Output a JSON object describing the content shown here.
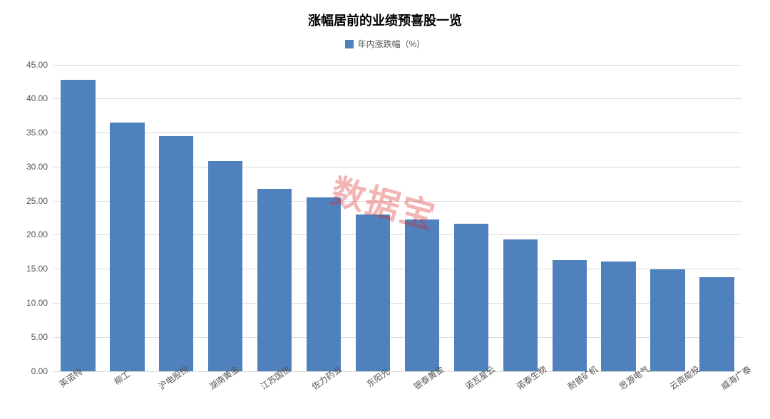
{
  "chart": {
    "type": "bar",
    "title": "涨幅居前的业绩预喜股一览",
    "title_fontsize": 18,
    "title_fontweight": "bold",
    "title_color": "#000000",
    "legend": {
      "label": "年内涨跌幅（%）",
      "swatch_color": "#4f81bd",
      "fontsize": 12,
      "color": "#555555"
    },
    "categories": [
      "英诺特",
      "柳工",
      "沪电股份",
      "湖南黄金",
      "江苏国信",
      "佐力药业",
      "东阳光",
      "银泰黄金",
      "诺瓦星云",
      "诺泰生物",
      "耐普矿机",
      "思源电气",
      "云南能投",
      "威海广泰"
    ],
    "values": [
      42.8,
      36.5,
      34.5,
      30.8,
      26.7,
      25.5,
      23.0,
      22.2,
      21.6,
      19.3,
      16.3,
      16.1,
      14.9,
      13.8
    ],
    "bar_color": "#4f81bd",
    "bar_width": 0.7,
    "ylim": [
      0,
      45
    ],
    "ytick_step": 5,
    "ytick_format": "0.00",
    "yticks": [
      "0.00",
      "5.00",
      "10.00",
      "15.00",
      "20.00",
      "25.00",
      "30.00",
      "35.00",
      "40.00",
      "45.00"
    ],
    "axis_label_fontsize": 12,
    "axis_label_color": "#555555",
    "grid_color": "#d9d9d9",
    "background_color": "#ffffff",
    "xlabel_rotation": -35,
    "watermark": {
      "text": "数据宝",
      "color": "rgba(220,40,40,0.35)",
      "fontsize": 48,
      "rotation": 15
    }
  }
}
